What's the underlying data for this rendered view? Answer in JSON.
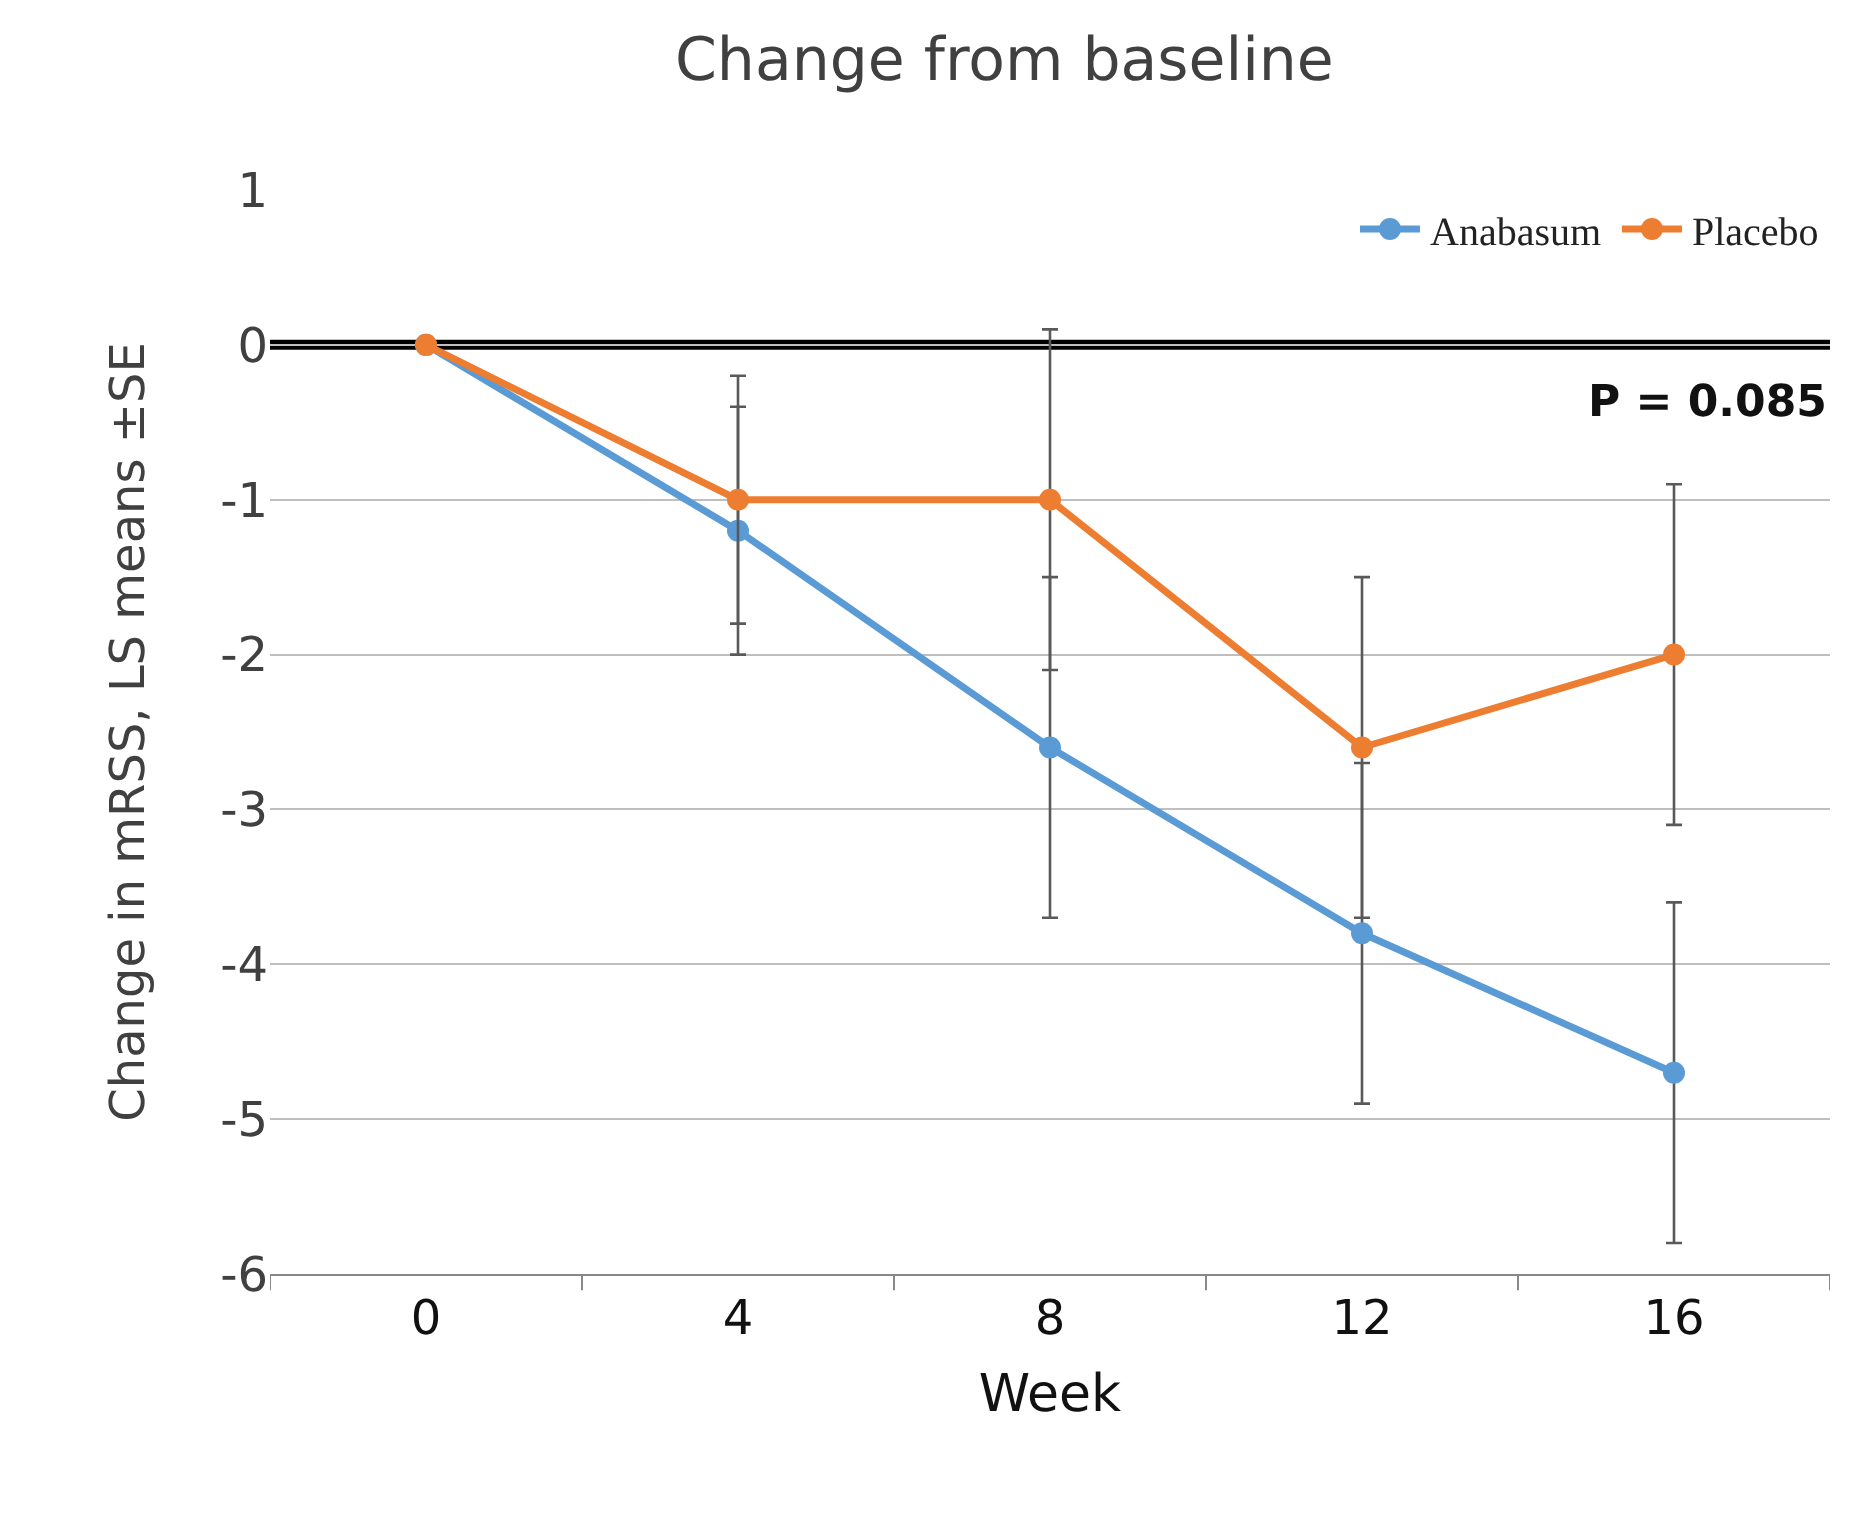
{
  "chart_data": {
    "type": "line",
    "title": "Change from baseline",
    "xlabel": "Week",
    "ylabel": "Change in mRSS, LS means ±SE",
    "categories": [
      "0",
      "4",
      "8",
      "12",
      "16"
    ],
    "series": [
      {
        "name": "Anabasum",
        "color": "#5b9bd5",
        "values": [
          0,
          -1.2,
          -2.6,
          -3.8,
          -4.7
        ],
        "errors": [
          null,
          0.8,
          1.1,
          1.1,
          1.1
        ]
      },
      {
        "name": "Placebo",
        "color": "#ed7d31",
        "values": [
          0,
          -1,
          -1,
          -2.6,
          -2.0
        ],
        "errors": [
          null,
          0.8,
          1.1,
          1.1,
          1.1
        ]
      }
    ],
    "ylim": [
      -6,
      1
    ],
    "yticks": [
      -6,
      -5,
      -4,
      -3,
      -2,
      -1,
      0,
      1
    ],
    "ref_lines": [
      {
        "axis": "y",
        "value": 0,
        "color": "#000000",
        "line_style": "solid"
      }
    ],
    "annotations": [
      "P = 0.085"
    ],
    "grid": "y",
    "legend": "top right",
    "marker": "circle",
    "line_style": "solid"
  }
}
